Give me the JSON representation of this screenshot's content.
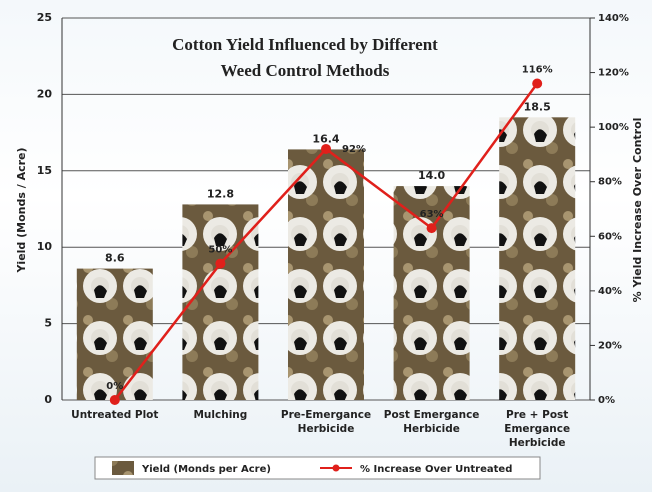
{
  "chart_data": {
    "type": "bar",
    "title": [
      "Cotton Yield Influenced by Different",
      "Weed Control Methods"
    ],
    "ylabel": "Yield (Monds / Acre)",
    "y2label": "% Yield Increase Over Control",
    "categories": [
      "Untreated Plot",
      "Mulching",
      "Pre-Emergance Herbicide",
      "Post Emergance Herbicide",
      "Pre + Post Emergance Herbicide"
    ],
    "series": [
      {
        "name": "Yield (Monds per Acre)",
        "type": "bar",
        "color": "#3a5bb5",
        "values": [
          8.6,
          12.8,
          16.4,
          14.0,
          18.5
        ],
        "value_labels": [
          "8.6",
          "12.8",
          "16.4",
          "14.0",
          "18.5"
        ]
      },
      {
        "name": "% Increase Over Untreated",
        "type": "line",
        "axis": "y2",
        "color": "#e0201b",
        "values": [
          0,
          50,
          92,
          63,
          116
        ],
        "value_labels": [
          "0%",
          "50%",
          "92%",
          "63%",
          "116%"
        ]
      }
    ],
    "ylim": [
      0,
      25
    ],
    "yticks": [
      0,
      5,
      10,
      15,
      20,
      25
    ],
    "y2lim": [
      0,
      140
    ],
    "y2ticks": [
      {
        "value": 0,
        "label": "0%"
      },
      {
        "value": 20,
        "label": "20%"
      },
      {
        "value": 40,
        "label": "40%"
      },
      {
        "value": 60,
        "label": "60%"
      },
      {
        "value": 80,
        "label": "80%"
      },
      {
        "value": 100,
        "label": "100%"
      },
      {
        "value": 120,
        "label": "120%"
      },
      {
        "value": 140,
        "label": "140%"
      }
    ],
    "grid": true,
    "legend": "bottom"
  }
}
